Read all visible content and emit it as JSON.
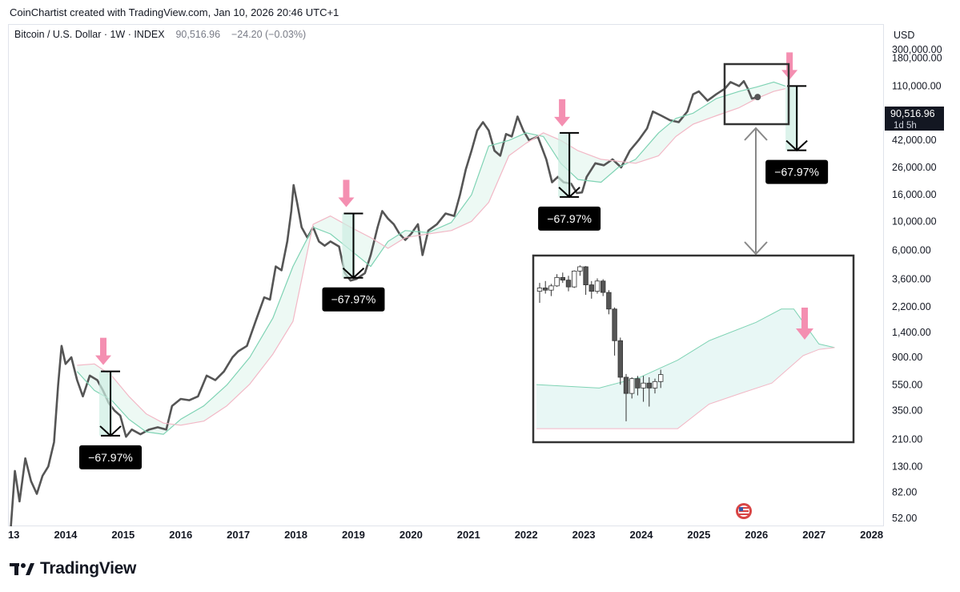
{
  "header": {
    "caption": "CoinChartist created with TradingView.com, Jan 10, 2026 20:46 UTC+1"
  },
  "legend": {
    "symbol": "Bitcoin / U.S. Dollar · 1W · INDEX",
    "price": "90,516.96",
    "change": "−24.20 (−0.03%)"
  },
  "price_axis": {
    "currency": "USD",
    "current_price": "90,516.96",
    "countdown": "1d 5h"
  },
  "footer": {
    "brand": "TradingView"
  },
  "colors": {
    "price_line": "#555555",
    "cloud_green": "#7fd3b4",
    "cloud_red": "#f2b8c6",
    "arrow_pink": "#f48fb1",
    "label_bg": "#000000"
  },
  "chart_data": {
    "type": "line",
    "title": "Bitcoin / U.S. Dollar · 1W · INDEX",
    "scale": "log",
    "ylim": [
      45,
      330000
    ],
    "y_ticks": [
      300000,
      180000,
      110000,
      42000,
      26000,
      16000,
      10000,
      6000,
      3600,
      2200,
      1400,
      900,
      550,
      350,
      210,
      130,
      82,
      52
    ],
    "y_tick_labels": [
      "300,000.00",
      "180,000.00",
      "110,000.00",
      "42,000.00",
      "26,000.00",
      "16,000.00",
      "10,000.00",
      "6,000.00",
      "3,600.00",
      "2,200.00",
      "1,400.00",
      "900.00",
      "550.00",
      "350.00",
      "210.00",
      "130.00",
      "82.00",
      "52.00"
    ],
    "x_ticks": [
      "13",
      "2014",
      "2015",
      "2016",
      "2017",
      "2018",
      "2019",
      "2020",
      "2021",
      "2022",
      "2023",
      "2024",
      "2025",
      "2026",
      "2027",
      "2028"
    ],
    "xlim": [
      2013.0,
      2028.2
    ],
    "series": [
      {
        "name": "BTCUSD weekly close",
        "points": [
          [
            2013.05,
            45
          ],
          [
            2013.12,
            120
          ],
          [
            2013.2,
            70
          ],
          [
            2013.3,
            150
          ],
          [
            2013.4,
            100
          ],
          [
            2013.5,
            80
          ],
          [
            2013.6,
            110
          ],
          [
            2013.7,
            130
          ],
          [
            2013.8,
            200
          ],
          [
            2013.87,
            550
          ],
          [
            2013.93,
            1100
          ],
          [
            2014.0,
            800
          ],
          [
            2014.1,
            900
          ],
          [
            2014.2,
            600
          ],
          [
            2014.3,
            450
          ],
          [
            2014.42,
            650
          ],
          [
            2014.55,
            600
          ],
          [
            2014.65,
            500
          ],
          [
            2014.75,
            400
          ],
          [
            2014.85,
            350
          ],
          [
            2014.95,
            320
          ],
          [
            2015.05,
            220
          ],
          [
            2015.15,
            250
          ],
          [
            2015.3,
            230
          ],
          [
            2015.45,
            250
          ],
          [
            2015.6,
            260
          ],
          [
            2015.75,
            250
          ],
          [
            2015.85,
            380
          ],
          [
            2016.0,
            430
          ],
          [
            2016.15,
            420
          ],
          [
            2016.3,
            450
          ],
          [
            2016.45,
            650
          ],
          [
            2016.6,
            600
          ],
          [
            2016.75,
            700
          ],
          [
            2016.9,
            900
          ],
          [
            2017.0,
            1000
          ],
          [
            2017.15,
            1100
          ],
          [
            2017.3,
            1700
          ],
          [
            2017.45,
            2600
          ],
          [
            2017.55,
            2500
          ],
          [
            2017.65,
            4500
          ],
          [
            2017.75,
            4200
          ],
          [
            2017.85,
            7000
          ],
          [
            2017.92,
            12000
          ],
          [
            2017.96,
            19000
          ],
          [
            2018.02,
            14000
          ],
          [
            2018.1,
            9000
          ],
          [
            2018.2,
            7500
          ],
          [
            2018.3,
            9000
          ],
          [
            2018.4,
            7000
          ],
          [
            2018.5,
            6500
          ],
          [
            2018.6,
            7000
          ],
          [
            2018.75,
            6400
          ],
          [
            2018.85,
            4000
          ],
          [
            2018.95,
            3500
          ],
          [
            2019.05,
            3600
          ],
          [
            2019.2,
            4000
          ],
          [
            2019.3,
            5500
          ],
          [
            2019.42,
            9000
          ],
          [
            2019.5,
            12000
          ],
          [
            2019.6,
            10500
          ],
          [
            2019.7,
            9500
          ],
          [
            2019.8,
            8000
          ],
          [
            2019.9,
            7200
          ],
          [
            2020.0,
            8000
          ],
          [
            2020.12,
            9500
          ],
          [
            2020.2,
            5500
          ],
          [
            2020.3,
            8500
          ],
          [
            2020.45,
            9500
          ],
          [
            2020.6,
            11500
          ],
          [
            2020.75,
            11000
          ],
          [
            2020.85,
            16000
          ],
          [
            2020.95,
            25000
          ],
          [
            2021.05,
            35000
          ],
          [
            2021.15,
            50000
          ],
          [
            2021.25,
            58000
          ],
          [
            2021.35,
            50000
          ],
          [
            2021.45,
            35000
          ],
          [
            2021.55,
            32000
          ],
          [
            2021.65,
            47000
          ],
          [
            2021.75,
            45000
          ],
          [
            2021.85,
            64000
          ],
          [
            2021.95,
            50000
          ],
          [
            2022.05,
            42000
          ],
          [
            2022.2,
            45000
          ],
          [
            2022.35,
            30000
          ],
          [
            2022.45,
            20000
          ],
          [
            2022.55,
            22000
          ],
          [
            2022.65,
            20000
          ],
          [
            2022.78,
            19500
          ],
          [
            2022.88,
            16500
          ],
          [
            2022.97,
            16700
          ],
          [
            2023.05,
            22000
          ],
          [
            2023.2,
            28000
          ],
          [
            2023.35,
            27000
          ],
          [
            2023.5,
            30000
          ],
          [
            2023.65,
            26000
          ],
          [
            2023.8,
            35000
          ],
          [
            2023.95,
            42000
          ],
          [
            2024.1,
            52000
          ],
          [
            2024.2,
            70000
          ],
          [
            2024.35,
            65000
          ],
          [
            2024.5,
            60000
          ],
          [
            2024.65,
            58000
          ],
          [
            2024.8,
            70000
          ],
          [
            2024.9,
            95000
          ],
          [
            2025.0,
            100000
          ],
          [
            2025.15,
            85000
          ],
          [
            2025.3,
            95000
          ],
          [
            2025.45,
            105000
          ],
          [
            2025.55,
            118000
          ],
          [
            2025.7,
            110000
          ],
          [
            2025.78,
            120000
          ],
          [
            2025.85,
            105000
          ],
          [
            2025.92,
            88000
          ],
          [
            2026.02,
            90516.96
          ]
        ]
      },
      {
        "name": "Ichimoku cloud leading span (green)",
        "points": [
          [
            2014.2,
            700
          ],
          [
            2014.5,
            500
          ],
          [
            2014.8,
            420
          ],
          [
            2015.1,
            300
          ],
          [
            2015.4,
            240
          ],
          [
            2015.7,
            230
          ],
          [
            2016.0,
            300
          ],
          [
            2016.4,
            380
          ],
          [
            2016.8,
            550
          ],
          [
            2017.2,
            900
          ],
          [
            2017.6,
            1800
          ],
          [
            2017.95,
            4500
          ],
          [
            2018.3,
            9000
          ],
          [
            2018.6,
            8000
          ],
          [
            2018.95,
            6000
          ],
          [
            2019.3,
            4500
          ],
          [
            2019.6,
            7000
          ],
          [
            2019.9,
            8500
          ],
          [
            2020.3,
            8200
          ],
          [
            2020.7,
            9800
          ],
          [
            2021.05,
            16000
          ],
          [
            2021.35,
            38000
          ],
          [
            2021.7,
            42000
          ],
          [
            2022.0,
            48000
          ],
          [
            2022.3,
            45000
          ],
          [
            2022.6,
            28000
          ],
          [
            2022.9,
            21000
          ],
          [
            2023.3,
            20000
          ],
          [
            2023.6,
            26000
          ],
          [
            2023.9,
            30000
          ],
          [
            2024.3,
            48000
          ],
          [
            2024.6,
            62000
          ],
          [
            2024.9,
            68000
          ],
          [
            2025.3,
            88000
          ],
          [
            2025.7,
            100000
          ],
          [
            2026.0,
            108000
          ],
          [
            2026.3,
            118000
          ],
          [
            2026.5,
            110000
          ]
        ]
      },
      {
        "name": "Ichimoku cloud leading span (red)",
        "points": [
          [
            2014.2,
            780
          ],
          [
            2014.5,
            800
          ],
          [
            2014.8,
            650
          ],
          [
            2015.1,
            450
          ],
          [
            2015.4,
            330
          ],
          [
            2015.7,
            280
          ],
          [
            2016.0,
            270
          ],
          [
            2016.4,
            290
          ],
          [
            2016.8,
            380
          ],
          [
            2017.2,
            560
          ],
          [
            2017.6,
            950
          ],
          [
            2017.95,
            1700
          ],
          [
            2018.3,
            9500
          ],
          [
            2018.6,
            11000
          ],
          [
            2018.95,
            9000
          ],
          [
            2019.3,
            7500
          ],
          [
            2019.6,
            6200
          ],
          [
            2019.9,
            7500
          ],
          [
            2020.3,
            8000
          ],
          [
            2020.7,
            8500
          ],
          [
            2021.05,
            10000
          ],
          [
            2021.35,
            14000
          ],
          [
            2021.7,
            32000
          ],
          [
            2022.0,
            40000
          ],
          [
            2022.3,
            48000
          ],
          [
            2022.6,
            42000
          ],
          [
            2022.9,
            35000
          ],
          [
            2023.3,
            30000
          ],
          [
            2023.6,
            29000
          ],
          [
            2023.9,
            28000
          ],
          [
            2024.3,
            32000
          ],
          [
            2024.6,
            45000
          ],
          [
            2024.9,
            56000
          ],
          [
            2025.3,
            65000
          ],
          [
            2025.7,
            75000
          ],
          [
            2026.0,
            88000
          ],
          [
            2026.3,
            100000
          ],
          [
            2026.5,
            105000
          ]
        ]
      }
    ],
    "annotations": [
      {
        "label": "−67.97%",
        "from": [
          2014.78,
          700
        ],
        "to": [
          2014.78,
          224
        ]
      },
      {
        "label": "−67.97%",
        "from": [
          2019.0,
          11500
        ],
        "to": [
          2019.0,
          3680
        ]
      },
      {
        "label": "−67.97%",
        "from": [
          2022.75,
          48000
        ],
        "to": [
          2022.75,
          15400
        ]
      },
      {
        "label": "−67.97%",
        "from": [
          2026.7,
          110000
        ],
        "to": [
          2026.7,
          35200
        ]
      }
    ],
    "inset": {
      "description_label": "",
      "candles": [
        [
          2011,
          4200,
          5000,
          3300,
          4500
        ],
        [
          2012,
          4500,
          5200,
          4000,
          4300
        ],
        [
          2013,
          4300,
          4900,
          3800,
          4700
        ],
        [
          2014,
          4700,
          6000,
          4600,
          5600
        ],
        [
          2015,
          5600,
          6200,
          5000,
          5300
        ],
        [
          2016,
          5300,
          5800,
          4200,
          4600
        ],
        [
          2017,
          4600,
          6500,
          4500,
          6400
        ],
        [
          2018,
          6400,
          7200,
          5800,
          7000
        ],
        [
          2019,
          7000,
          7100,
          3900,
          4800
        ],
        [
          2020,
          4800,
          5200,
          3600,
          4200
        ],
        [
          2021,
          4200,
          5500,
          4000,
          5200
        ],
        [
          2022,
          5200,
          5400,
          3800,
          4100
        ],
        [
          2023,
          4100,
          4300,
          2600,
          2900
        ],
        [
          2024,
          2900,
          3000,
          1100,
          1500
        ],
        [
          2025,
          1500,
          1600,
          600,
          700
        ],
        [
          2026,
          700,
          750,
          280,
          500
        ],
        [
          2027,
          500,
          700,
          450,
          680
        ],
        [
          2028,
          680,
          720,
          480,
          560
        ],
        [
          2029,
          560,
          720,
          420,
          620
        ],
        [
          2030,
          620,
          700,
          380,
          560
        ],
        [
          2031,
          560,
          680,
          500,
          640
        ],
        [
          2032,
          640,
          820,
          560,
          740
        ]
      ]
    }
  }
}
